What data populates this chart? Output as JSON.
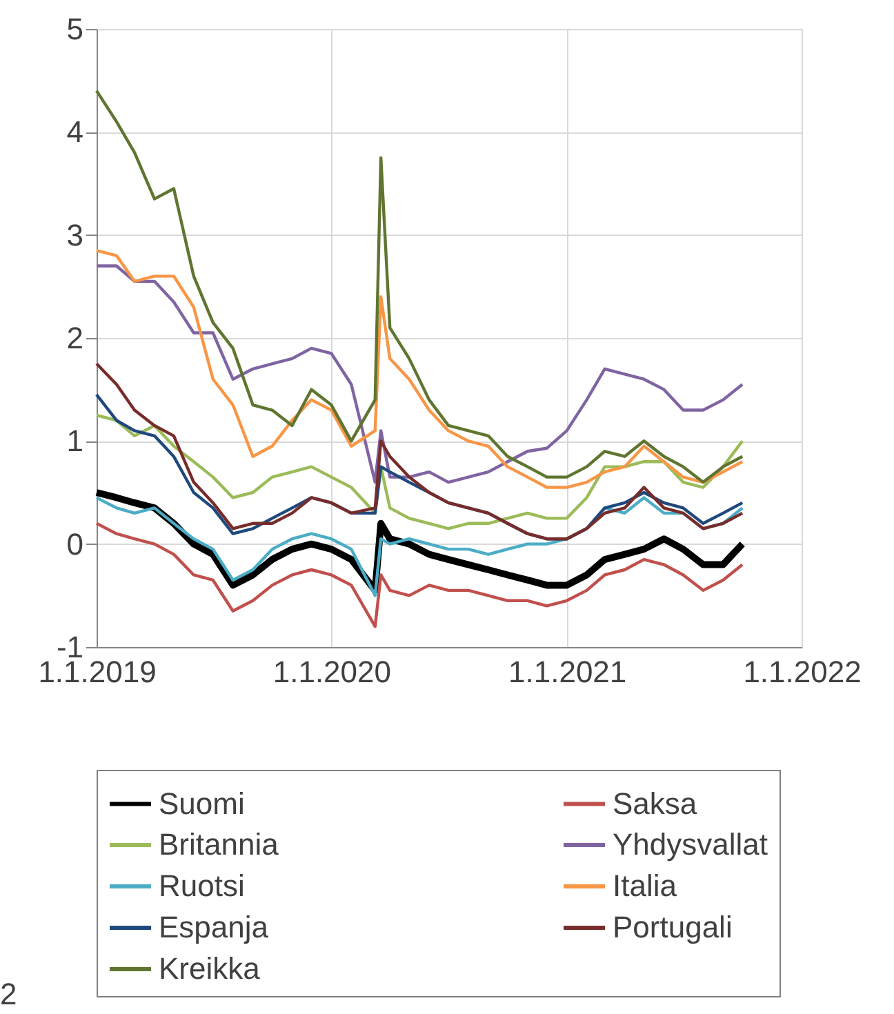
{
  "chart_data": {
    "type": "line",
    "x": [
      "2019-01-01",
      "2019-02-01",
      "2019-03-01",
      "2019-04-01",
      "2019-05-01",
      "2019-06-01",
      "2019-07-01",
      "2019-08-01",
      "2019-09-01",
      "2019-10-01",
      "2019-11-01",
      "2019-12-01",
      "2020-01-01",
      "2020-02-01",
      "2020-03-09",
      "2020-03-18",
      "2020-04-01",
      "2020-05-01",
      "2020-06-01",
      "2020-07-01",
      "2020-08-01",
      "2020-09-01",
      "2020-10-01",
      "2020-11-01",
      "2020-12-01",
      "2021-01-01",
      "2021-02-01",
      "2021-03-01",
      "2021-04-01",
      "2021-05-01",
      "2021-06-01",
      "2021-07-01",
      "2021-08-01",
      "2021-09-01",
      "2021-10-01"
    ],
    "series": [
      {
        "name": "Suomi",
        "color": "#000000",
        "values": [
          0.5,
          0.45,
          0.4,
          0.35,
          0.2,
          0.0,
          -0.1,
          -0.4,
          -0.3,
          -0.15,
          -0.05,
          0.0,
          -0.05,
          -0.15,
          -0.45,
          0.2,
          0.05,
          0.0,
          -0.1,
          -0.15,
          -0.2,
          -0.25,
          -0.3,
          -0.35,
          -0.4,
          -0.4,
          -0.3,
          -0.15,
          -0.1,
          -0.05,
          0.05,
          -0.05,
          -0.2,
          -0.2,
          0.0
        ]
      },
      {
        "name": "Saksa",
        "color": "#c0504d",
        "values": [
          0.2,
          0.1,
          0.05,
          0.0,
          -0.1,
          -0.3,
          -0.35,
          -0.65,
          -0.55,
          -0.4,
          -0.3,
          -0.25,
          -0.3,
          -0.4,
          -0.8,
          -0.3,
          -0.45,
          -0.5,
          -0.4,
          -0.45,
          -0.45,
          -0.5,
          -0.55,
          -0.55,
          -0.6,
          -0.55,
          -0.45,
          -0.3,
          -0.25,
          -0.15,
          -0.2,
          -0.3,
          -0.45,
          -0.35,
          -0.2
        ]
      },
      {
        "name": "Britannia",
        "color": "#9bbb59",
        "values": [
          1.25,
          1.2,
          1.05,
          1.15,
          0.95,
          0.8,
          0.65,
          0.45,
          0.5,
          0.65,
          0.7,
          0.75,
          0.65,
          0.55,
          0.3,
          0.75,
          0.35,
          0.25,
          0.2,
          0.15,
          0.2,
          0.2,
          0.25,
          0.3,
          0.25,
          0.25,
          0.45,
          0.75,
          0.75,
          0.8,
          0.8,
          0.6,
          0.55,
          0.75,
          1.0
        ]
      },
      {
        "name": "Yhdysvallat",
        "color": "#8064a2",
        "values": [
          2.7,
          2.7,
          2.55,
          2.55,
          2.35,
          2.05,
          2.05,
          1.6,
          1.7,
          1.75,
          1.8,
          1.9,
          1.85,
          1.55,
          0.6,
          1.1,
          0.65,
          0.65,
          0.7,
          0.6,
          0.65,
          0.7,
          0.8,
          0.9,
          0.93,
          1.1,
          1.4,
          1.7,
          1.65,
          1.6,
          1.5,
          1.3,
          1.3,
          1.4,
          1.55
        ]
      },
      {
        "name": "Ruotsi",
        "color": "#4bacc6",
        "values": [
          0.45,
          0.35,
          0.3,
          0.35,
          0.2,
          0.05,
          -0.05,
          -0.35,
          -0.25,
          -0.05,
          0.05,
          0.1,
          0.05,
          -0.05,
          -0.5,
          0.05,
          0.0,
          0.05,
          0.0,
          -0.05,
          -0.05,
          -0.1,
          -0.05,
          0.0,
          0.0,
          0.05,
          0.15,
          0.35,
          0.3,
          0.45,
          0.3,
          0.3,
          0.15,
          0.2,
          0.35
        ]
      },
      {
        "name": "Italia",
        "color": "#f79646",
        "values": [
          2.85,
          2.8,
          2.55,
          2.6,
          2.6,
          2.3,
          1.6,
          1.35,
          0.85,
          0.95,
          1.2,
          1.4,
          1.3,
          0.95,
          1.1,
          2.4,
          1.8,
          1.6,
          1.3,
          1.1,
          1.0,
          0.95,
          0.75,
          0.65,
          0.55,
          0.55,
          0.6,
          0.7,
          0.75,
          0.95,
          0.8,
          0.65,
          0.6,
          0.7,
          0.8
        ]
      },
      {
        "name": "Espanja",
        "color": "#1f497d",
        "values": [
          1.45,
          1.2,
          1.1,
          1.05,
          0.85,
          0.5,
          0.35,
          0.1,
          0.15,
          0.25,
          0.35,
          0.45,
          0.4,
          0.3,
          0.3,
          0.75,
          0.7,
          0.6,
          0.5,
          0.4,
          0.35,
          0.3,
          0.2,
          0.1,
          0.05,
          0.05,
          0.15,
          0.35,
          0.4,
          0.5,
          0.4,
          0.35,
          0.2,
          0.3,
          0.4
        ]
      },
      {
        "name": "Portugali",
        "color": "#772c2a",
        "values": [
          1.75,
          1.55,
          1.3,
          1.15,
          1.05,
          0.6,
          0.4,
          0.15,
          0.2,
          0.2,
          0.3,
          0.45,
          0.4,
          0.3,
          0.35,
          1.0,
          0.85,
          0.65,
          0.5,
          0.4,
          0.35,
          0.3,
          0.2,
          0.1,
          0.05,
          0.05,
          0.15,
          0.3,
          0.35,
          0.55,
          0.35,
          0.3,
          0.15,
          0.2,
          0.3
        ]
      },
      {
        "name": "Kreikka",
        "color": "#5f7530",
        "values": [
          4.4,
          4.1,
          3.8,
          3.35,
          3.45,
          2.6,
          2.15,
          1.9,
          1.35,
          1.3,
          1.15,
          1.5,
          1.35,
          1.0,
          1.4,
          3.75,
          2.1,
          1.8,
          1.4,
          1.15,
          1.1,
          1.05,
          0.85,
          0.75,
          0.65,
          0.65,
          0.75,
          0.9,
          0.85,
          1.0,
          0.85,
          0.75,
          0.6,
          0.75,
          0.85
        ]
      }
    ],
    "xlim": [
      "2019-01-01",
      "2022-01-01"
    ],
    "xticks": [
      {
        "value": "2019-01-01",
        "label": "1.1.2019"
      },
      {
        "value": "2020-01-01",
        "label": "1.1.2020"
      },
      {
        "value": "2021-01-01",
        "label": "1.1.2021"
      },
      {
        "value": "2022-01-01",
        "label": "1.1.2022"
      }
    ],
    "ylim": [
      -1,
      5
    ],
    "yticks": [
      -1,
      0,
      1,
      2,
      3,
      4,
      5
    ],
    "grid": true,
    "legend": "bottom",
    "annotations": [
      "2"
    ]
  }
}
